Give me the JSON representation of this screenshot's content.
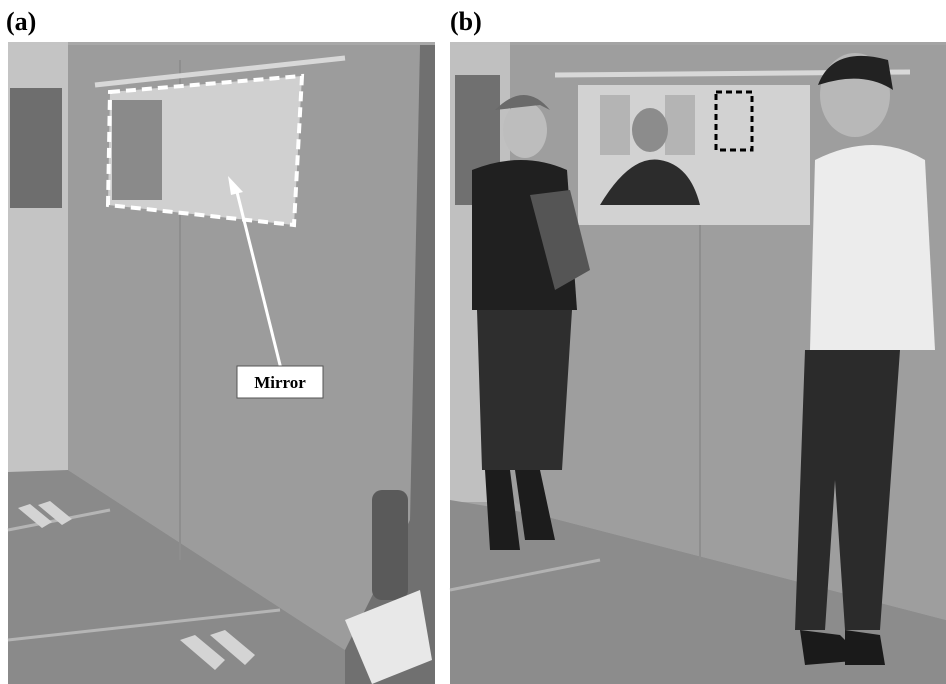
{
  "panels": [
    {
      "label": "(a)",
      "annotation": "Mirror"
    },
    {
      "label": "(b)"
    }
  ]
}
